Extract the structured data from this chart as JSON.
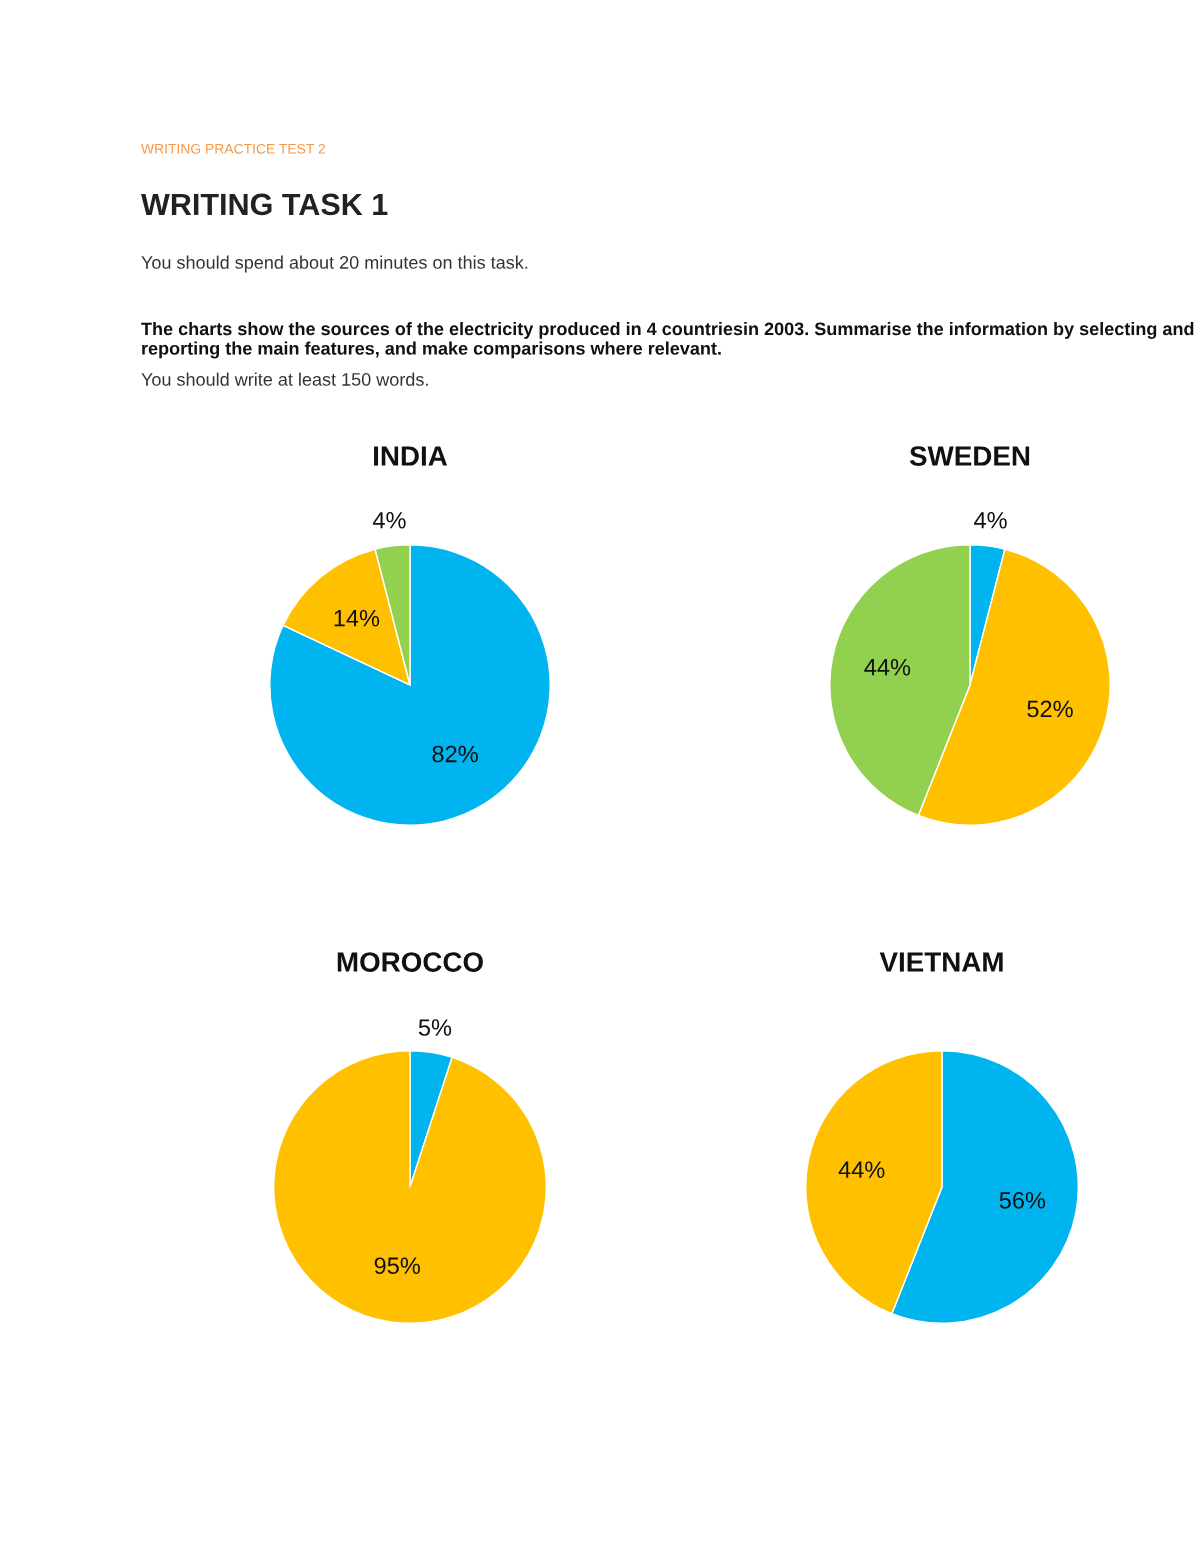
{
  "chart_data": [
    {
      "type": "pie",
      "title": "INDIA",
      "categories": [
        null,
        null,
        null
      ],
      "values": [
        82,
        14,
        4
      ],
      "colors": [
        "#00b4f0",
        "#ffc000",
        "#92d050"
      ],
      "value_labels": [
        "82%",
        "14%",
        "4%"
      ],
      "annotations": [
        "WRITING PRACTICE TEST 2",
        "WRITING TASK 1",
        "You should spend about 20 minutes on this task.",
        "The charts show the sources of the electricity produced in 4 countriesin 2003. Summarise the information by selecting and reporting the main features, and make comparisons where relevant.",
        "You should write at least 150 words."
      ]
    },
    {
      "type": "pie",
      "title": "SWEDEN",
      "categories": [
        null,
        null,
        null
      ],
      "values": [
        4,
        52,
        44
      ],
      "colors": [
        "#00b4f0",
        "#ffc000",
        "#92d050"
      ],
      "value_labels": [
        "4%",
        "52%",
        "44%"
      ]
    },
    {
      "type": "pie",
      "title": "MOROCCO",
      "categories": [
        null,
        null
      ],
      "values": [
        5,
        95
      ],
      "colors": [
        "#00b4f0",
        "#ffc000"
      ],
      "value_labels": [
        "5%",
        "95%"
      ]
    },
    {
      "type": "pie",
      "title": "VIETNAM",
      "categories": [
        null,
        null
      ],
      "values": [
        56,
        44
      ],
      "colors": [
        "#00b4f0",
        "#ffc000"
      ],
      "value_labels": [
        "56%",
        "44%"
      ]
    }
  ]
}
